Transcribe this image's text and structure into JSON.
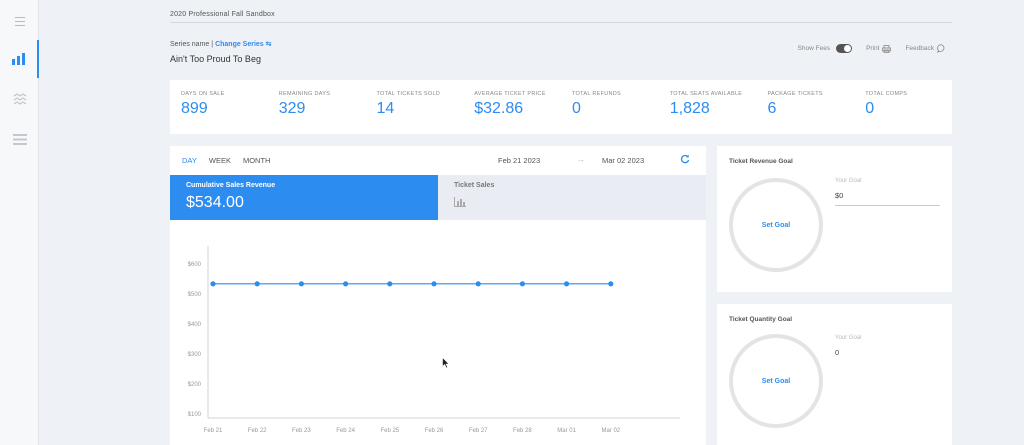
{
  "header": {
    "org_name": "2020 Professional Fall Sandbox",
    "series_label": "Series name |",
    "change_series": "Change Series",
    "event_title": "Ain't Too Proud To Beg",
    "show_fees": "Show Fees",
    "print": "Print",
    "feedback": "Feedback"
  },
  "stats": [
    {
      "label": "DAYS ON SALE",
      "value": "899"
    },
    {
      "label": "REMAINING DAYS",
      "value": "329"
    },
    {
      "label": "TOTAL TICKETS SOLD",
      "value": "14"
    },
    {
      "label": "AVERAGE TICKET PRICE",
      "value": "$32.86"
    },
    {
      "label": "TOTAL REFUNDS",
      "value": "0"
    },
    {
      "label": "TOTAL SEATS AVAILABLE",
      "value": "1,828"
    },
    {
      "label": "PACKAGE TICKETS",
      "value": "6"
    },
    {
      "label": "TOTAL COMPS",
      "value": "0"
    }
  ],
  "range": {
    "tabs": [
      "DAY",
      "WEEK",
      "MONTH"
    ],
    "active": "DAY",
    "date_from": "Feb 21 2023",
    "date_to": "Mar 02 2023"
  },
  "metrics": {
    "active_label": "Cumulative Sales Revenue",
    "active_value": "$534.00",
    "inactive_label": "Ticket Sales"
  },
  "goals": {
    "revenue": {
      "title": "Ticket Revenue Goal",
      "set_label": "Set Goal",
      "your_goal_label": "Your Goal",
      "value": "$0"
    },
    "quantity": {
      "title": "Ticket Quantity Goal",
      "set_label": "Set Goal",
      "your_goal_label": "Your Goal",
      "value": "0"
    }
  },
  "colors": {
    "accent": "#2d8cf0",
    "bg": "#eef1f6",
    "inactive_tab": "#e9edf3"
  },
  "chart_data": {
    "type": "line",
    "categories": [
      "Feb 21",
      "Feb 22",
      "Feb 23",
      "Feb 24",
      "Feb 25",
      "Feb 26",
      "Feb 27",
      "Feb 28",
      "Mar 01",
      "Mar 02"
    ],
    "series": [
      {
        "values": [
          534,
          534,
          534,
          534,
          534,
          534,
          534,
          534,
          534,
          534
        ]
      }
    ],
    "y_ticks": [
      "$100",
      "$200",
      "$300",
      "$400",
      "$500",
      "$600"
    ],
    "ylim": [
      100,
      600
    ],
    "grid": false
  }
}
